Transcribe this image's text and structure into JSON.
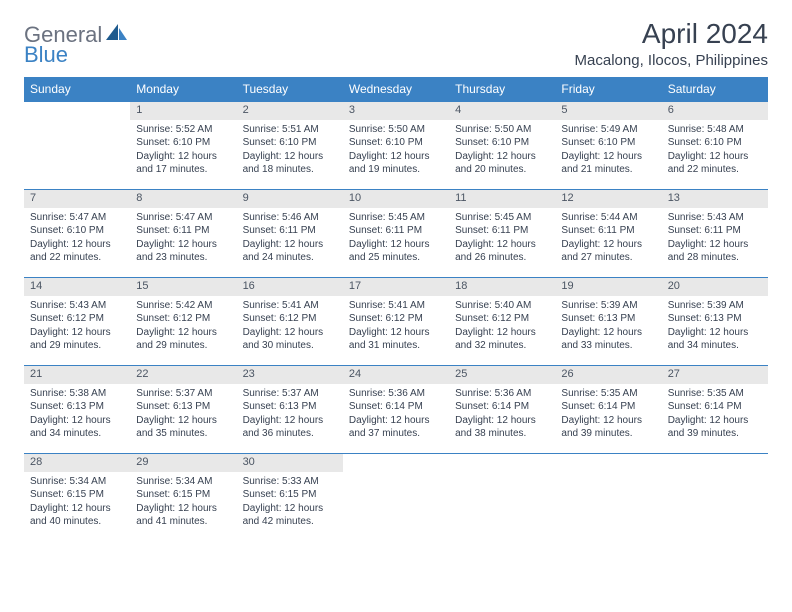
{
  "logo": {
    "text1": "General",
    "text2": "Blue"
  },
  "title": "April 2024",
  "location": "Macalong, Ilocos, Philippines",
  "colors": {
    "header_bg": "#3b82c4",
    "daynum_bg": "#e8e8e8",
    "text": "#374151",
    "logo_gray": "#6b7280",
    "logo_blue": "#3b82c4"
  },
  "weekdays": [
    "Sunday",
    "Monday",
    "Tuesday",
    "Wednesday",
    "Thursday",
    "Friday",
    "Saturday"
  ],
  "weeks": [
    {
      "nums": [
        "",
        "1",
        "2",
        "3",
        "4",
        "5",
        "6"
      ],
      "cells": [
        null,
        {
          "sr": "Sunrise: 5:52 AM",
          "ss": "Sunset: 6:10 PM",
          "d1": "Daylight: 12 hours",
          "d2": "and 17 minutes."
        },
        {
          "sr": "Sunrise: 5:51 AM",
          "ss": "Sunset: 6:10 PM",
          "d1": "Daylight: 12 hours",
          "d2": "and 18 minutes."
        },
        {
          "sr": "Sunrise: 5:50 AM",
          "ss": "Sunset: 6:10 PM",
          "d1": "Daylight: 12 hours",
          "d2": "and 19 minutes."
        },
        {
          "sr": "Sunrise: 5:50 AM",
          "ss": "Sunset: 6:10 PM",
          "d1": "Daylight: 12 hours",
          "d2": "and 20 minutes."
        },
        {
          "sr": "Sunrise: 5:49 AM",
          "ss": "Sunset: 6:10 PM",
          "d1": "Daylight: 12 hours",
          "d2": "and 21 minutes."
        },
        {
          "sr": "Sunrise: 5:48 AM",
          "ss": "Sunset: 6:10 PM",
          "d1": "Daylight: 12 hours",
          "d2": "and 22 minutes."
        }
      ]
    },
    {
      "nums": [
        "7",
        "8",
        "9",
        "10",
        "11",
        "12",
        "13"
      ],
      "cells": [
        {
          "sr": "Sunrise: 5:47 AM",
          "ss": "Sunset: 6:10 PM",
          "d1": "Daylight: 12 hours",
          "d2": "and 22 minutes."
        },
        {
          "sr": "Sunrise: 5:47 AM",
          "ss": "Sunset: 6:11 PM",
          "d1": "Daylight: 12 hours",
          "d2": "and 23 minutes."
        },
        {
          "sr": "Sunrise: 5:46 AM",
          "ss": "Sunset: 6:11 PM",
          "d1": "Daylight: 12 hours",
          "d2": "and 24 minutes."
        },
        {
          "sr": "Sunrise: 5:45 AM",
          "ss": "Sunset: 6:11 PM",
          "d1": "Daylight: 12 hours",
          "d2": "and 25 minutes."
        },
        {
          "sr": "Sunrise: 5:45 AM",
          "ss": "Sunset: 6:11 PM",
          "d1": "Daylight: 12 hours",
          "d2": "and 26 minutes."
        },
        {
          "sr": "Sunrise: 5:44 AM",
          "ss": "Sunset: 6:11 PM",
          "d1": "Daylight: 12 hours",
          "d2": "and 27 minutes."
        },
        {
          "sr": "Sunrise: 5:43 AM",
          "ss": "Sunset: 6:11 PM",
          "d1": "Daylight: 12 hours",
          "d2": "and 28 minutes."
        }
      ]
    },
    {
      "nums": [
        "14",
        "15",
        "16",
        "17",
        "18",
        "19",
        "20"
      ],
      "cells": [
        {
          "sr": "Sunrise: 5:43 AM",
          "ss": "Sunset: 6:12 PM",
          "d1": "Daylight: 12 hours",
          "d2": "and 29 minutes."
        },
        {
          "sr": "Sunrise: 5:42 AM",
          "ss": "Sunset: 6:12 PM",
          "d1": "Daylight: 12 hours",
          "d2": "and 29 minutes."
        },
        {
          "sr": "Sunrise: 5:41 AM",
          "ss": "Sunset: 6:12 PM",
          "d1": "Daylight: 12 hours",
          "d2": "and 30 minutes."
        },
        {
          "sr": "Sunrise: 5:41 AM",
          "ss": "Sunset: 6:12 PM",
          "d1": "Daylight: 12 hours",
          "d2": "and 31 minutes."
        },
        {
          "sr": "Sunrise: 5:40 AM",
          "ss": "Sunset: 6:12 PM",
          "d1": "Daylight: 12 hours",
          "d2": "and 32 minutes."
        },
        {
          "sr": "Sunrise: 5:39 AM",
          "ss": "Sunset: 6:13 PM",
          "d1": "Daylight: 12 hours",
          "d2": "and 33 minutes."
        },
        {
          "sr": "Sunrise: 5:39 AM",
          "ss": "Sunset: 6:13 PM",
          "d1": "Daylight: 12 hours",
          "d2": "and 34 minutes."
        }
      ]
    },
    {
      "nums": [
        "21",
        "22",
        "23",
        "24",
        "25",
        "26",
        "27"
      ],
      "cells": [
        {
          "sr": "Sunrise: 5:38 AM",
          "ss": "Sunset: 6:13 PM",
          "d1": "Daylight: 12 hours",
          "d2": "and 34 minutes."
        },
        {
          "sr": "Sunrise: 5:37 AM",
          "ss": "Sunset: 6:13 PM",
          "d1": "Daylight: 12 hours",
          "d2": "and 35 minutes."
        },
        {
          "sr": "Sunrise: 5:37 AM",
          "ss": "Sunset: 6:13 PM",
          "d1": "Daylight: 12 hours",
          "d2": "and 36 minutes."
        },
        {
          "sr": "Sunrise: 5:36 AM",
          "ss": "Sunset: 6:14 PM",
          "d1": "Daylight: 12 hours",
          "d2": "and 37 minutes."
        },
        {
          "sr": "Sunrise: 5:36 AM",
          "ss": "Sunset: 6:14 PM",
          "d1": "Daylight: 12 hours",
          "d2": "and 38 minutes."
        },
        {
          "sr": "Sunrise: 5:35 AM",
          "ss": "Sunset: 6:14 PM",
          "d1": "Daylight: 12 hours",
          "d2": "and 39 minutes."
        },
        {
          "sr": "Sunrise: 5:35 AM",
          "ss": "Sunset: 6:14 PM",
          "d1": "Daylight: 12 hours",
          "d2": "and 39 minutes."
        }
      ]
    },
    {
      "nums": [
        "28",
        "29",
        "30",
        "",
        "",
        "",
        ""
      ],
      "cells": [
        {
          "sr": "Sunrise: 5:34 AM",
          "ss": "Sunset: 6:15 PM",
          "d1": "Daylight: 12 hours",
          "d2": "and 40 minutes."
        },
        {
          "sr": "Sunrise: 5:34 AM",
          "ss": "Sunset: 6:15 PM",
          "d1": "Daylight: 12 hours",
          "d2": "and 41 minutes."
        },
        {
          "sr": "Sunrise: 5:33 AM",
          "ss": "Sunset: 6:15 PM",
          "d1": "Daylight: 12 hours",
          "d2": "and 42 minutes."
        },
        null,
        null,
        null,
        null
      ]
    }
  ]
}
